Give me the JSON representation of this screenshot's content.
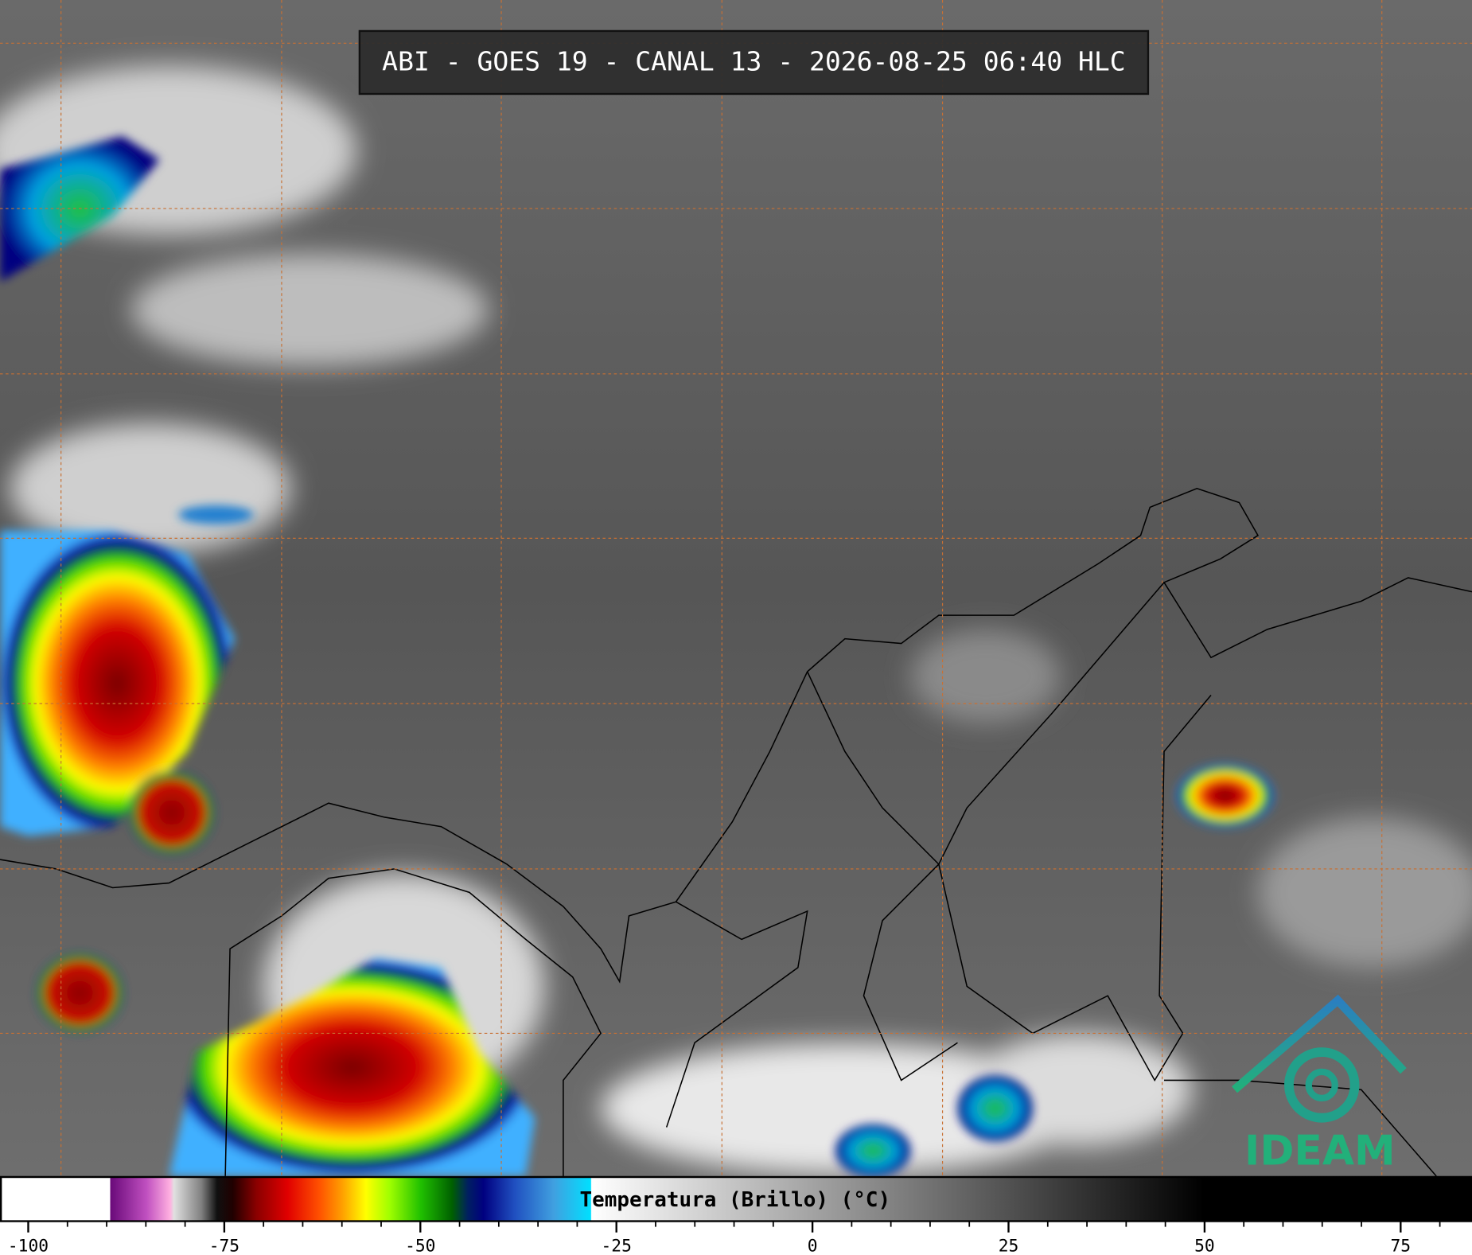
{
  "title": "ABI - GOES 19 - CANAL 13 - 2026-08-25 06:40 HLC",
  "colorbar": {
    "label": "Temperatura (Brillo) (°C)",
    "xlim": [
      -103.6,
      84.1
    ],
    "xticks": [
      -100,
      -75,
      -50,
      -25,
      0,
      25,
      50,
      75
    ],
    "xticks_minor": [
      -95,
      -90,
      -85,
      -80,
      -70,
      -65,
      -60,
      -55,
      -45,
      -40,
      -35,
      -30,
      -20,
      -15,
      -10,
      -5,
      5,
      10,
      15,
      20,
      30,
      35,
      40,
      45,
      55,
      60,
      65,
      70,
      80
    ],
    "colormap": [
      {
        "value": -103.6,
        "color": "#ffffff"
      },
      {
        "value": -89.7,
        "color": "#ffffff"
      },
      {
        "value": -89.6,
        "color": "#6a0a7a"
      },
      {
        "value": -85,
        "color": "#c050c0"
      },
      {
        "value": -82,
        "color": "#ffb0e0"
      },
      {
        "value": -81.5,
        "color": "#e0e0e0"
      },
      {
        "value": -78,
        "color": "#808080"
      },
      {
        "value": -76,
        "color": "#101010"
      },
      {
        "value": -74,
        "color": "#200000"
      },
      {
        "value": -71,
        "color": "#8a0000"
      },
      {
        "value": -67,
        "color": "#e00000"
      },
      {
        "value": -63,
        "color": "#ff5000"
      },
      {
        "value": -60,
        "color": "#ffa000"
      },
      {
        "value": -57,
        "color": "#ffff00"
      },
      {
        "value": -54,
        "color": "#a0ff00"
      },
      {
        "value": -50,
        "color": "#20c000"
      },
      {
        "value": -46,
        "color": "#006000"
      },
      {
        "value": -44,
        "color": "#002060"
      },
      {
        "value": -42,
        "color": "#000080"
      },
      {
        "value": -38,
        "color": "#2050c0"
      },
      {
        "value": -33,
        "color": "#40a0e0"
      },
      {
        "value": -28.3,
        "color": "#00e0ff"
      },
      {
        "value": -28.2,
        "color": "#ffffff"
      },
      {
        "value": 50,
        "color": "#000000"
      },
      {
        "value": 84.1,
        "color": "#000000"
      }
    ]
  },
  "logo": "IDEAM"
}
